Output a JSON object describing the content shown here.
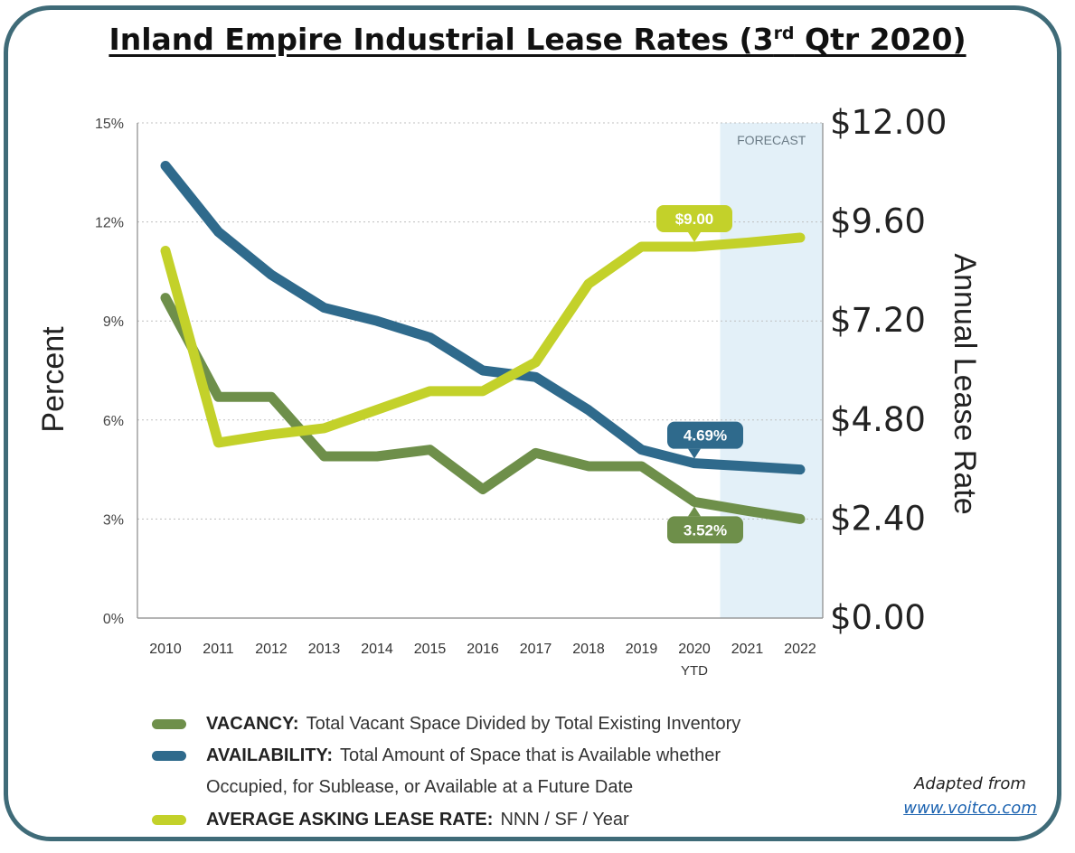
{
  "title": {
    "main": "Inland Empire Industrial Lease Rates (3",
    "sup": "rd",
    "tail": " Qtr 2020)"
  },
  "chart_data": {
    "type": "line",
    "categories": [
      "2010",
      "2011",
      "2012",
      "2013",
      "2014",
      "2015",
      "2016",
      "2017",
      "2018",
      "2019",
      "2020",
      "2021",
      "2022"
    ],
    "category_sublabels": {
      "2020": "YTD"
    },
    "forecast_label": "FORECAST",
    "forecast_range": [
      "2021",
      "2022"
    ],
    "left_axis": {
      "label": "Percent",
      "ticks": [
        "0%",
        "3%",
        "6%",
        "9%",
        "12%",
        "15%"
      ],
      "range": [
        0,
        15
      ]
    },
    "right_axis": {
      "label": "Annual Lease Rate",
      "ticks": [
        "$0.00",
        "$2.40",
        "$4.80",
        "$7.20",
        "$9.60",
        "$12.00"
      ],
      "range": [
        0,
        12
      ]
    },
    "series": [
      {
        "name": "VACANCY",
        "axis": "left",
        "color": "#6e8f4a",
        "values": [
          9.7,
          6.7,
          6.7,
          4.9,
          4.9,
          5.1,
          3.9,
          5.0,
          4.6,
          4.6,
          3.52,
          3.25,
          3.0
        ]
      },
      {
        "name": "AVAILABILITY",
        "axis": "left",
        "color": "#2f6a8c",
        "values": [
          13.7,
          11.7,
          10.4,
          9.4,
          9.0,
          8.5,
          7.5,
          7.3,
          6.3,
          5.1,
          4.69,
          4.6,
          4.5
        ]
      },
      {
        "name": "AVERAGE ASKING LEASE RATE",
        "axis": "right",
        "color": "#c3d12a",
        "values": [
          8.9,
          4.25,
          4.45,
          4.6,
          5.05,
          5.5,
          5.5,
          6.2,
          8.1,
          9.0,
          9.0,
          9.1,
          9.22
        ]
      }
    ],
    "callouts": [
      {
        "series": "AVERAGE ASKING LEASE RATE",
        "category": "2020",
        "text": "$9.00",
        "position": "above"
      },
      {
        "series": "AVAILABILITY",
        "category": "2020",
        "text": "4.69%",
        "position": "above"
      },
      {
        "series": "VACANCY",
        "category": "2020",
        "text": "3.52%",
        "position": "below"
      }
    ]
  },
  "legend": [
    {
      "name": "VACANCY:",
      "desc": "Total Vacant Space Divided by Total Existing Inventory",
      "color": "#6e8f4a"
    },
    {
      "name": "AVAILABILITY:",
      "desc": "Total Amount of Space that is Available whether",
      "color": "#2f6a8c",
      "cont": "Occupied, for Sublease, or Available at a Future Date"
    },
    {
      "name": "AVERAGE ASKING LEASE RATE:",
      "desc": "NNN / SF / Year",
      "color": "#c3d12a"
    }
  ],
  "credit": {
    "text": "Adapted from",
    "link": "www.voitco.com"
  }
}
